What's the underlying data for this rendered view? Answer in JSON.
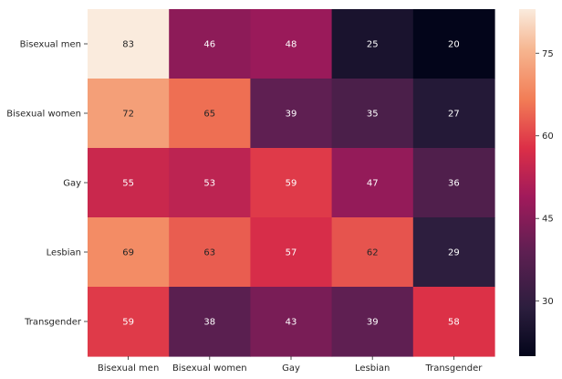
{
  "chart_data": {
    "type": "heatmap",
    "title": "",
    "xlabel": "",
    "ylabel": "",
    "rows": [
      "Bisexual men",
      "Bisexual women",
      "Gay",
      "Lesbian",
      "Transgender"
    ],
    "columns": [
      "Bisexual men",
      "Bisexual women",
      "Gay",
      "Lesbian",
      "Transgender"
    ],
    "values": [
      [
        83,
        46,
        48,
        25,
        20
      ],
      [
        72,
        65,
        39,
        35,
        27
      ],
      [
        55,
        53,
        59,
        47,
        36
      ],
      [
        69,
        63,
        57,
        62,
        29
      ],
      [
        59,
        38,
        43,
        39,
        58
      ]
    ],
    "colormap": "rocket",
    "colorbar": {
      "range": [
        20,
        83
      ],
      "ticks": [
        "30",
        "45",
        "60",
        "75"
      ],
      "tick_values": [
        30,
        45,
        60,
        75
      ]
    },
    "annotations": true,
    "grid": false
  }
}
